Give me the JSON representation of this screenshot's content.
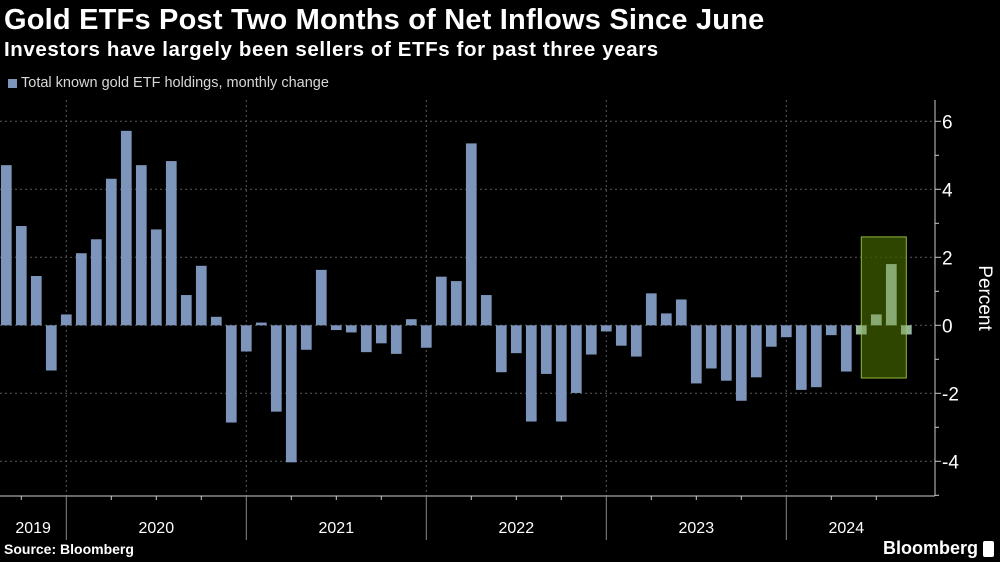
{
  "header": {
    "title": "Gold ETFs Post Two Months of Net Inflows Since June",
    "subtitle": "Investors have largely been sellers of ETFs for past three years"
  },
  "footer": {
    "source": "Source: Bloomberg",
    "logo": "Bloomberg"
  },
  "colors": {
    "background": "#000000",
    "bar": "#7d95bb",
    "highlight_fill": "#3d5c00",
    "highlight_border": "#93b840",
    "grid": "#5a5a5a"
  },
  "chart_data": {
    "type": "bar",
    "title": "Gold ETFs Post Two Months of Net Inflows Since June",
    "subtitle": "Investors have largely been sellers of ETFs for past three years",
    "legend": {
      "placement": "top-left",
      "entries": [
        "Total known gold ETF holdings, monthly change"
      ]
    },
    "ylabel": "Percent",
    "xlabel": "",
    "ylim": [
      -5,
      6.6
    ],
    "yticks": [
      6,
      4,
      2,
      0,
      -2,
      -4
    ],
    "ytick_labels": [
      "6",
      "4",
      "2",
      "0",
      "-2",
      "-4"
    ],
    "grid": true,
    "y_axis_side": "right",
    "year_labels": [
      "2019",
      "2020",
      "2021",
      "2022",
      "2023",
      "2024"
    ],
    "categories": [
      "2019-08",
      "2019-09",
      "2019-10",
      "2019-11",
      "2019-12",
      "2020-01",
      "2020-02",
      "2020-03",
      "2020-04",
      "2020-05",
      "2020-06",
      "2020-07",
      "2020-08",
      "2020-09",
      "2020-10",
      "2020-11",
      "2020-12",
      "2021-01",
      "2021-02",
      "2021-03",
      "2021-04",
      "2021-05",
      "2021-06",
      "2021-07",
      "2021-08",
      "2021-09",
      "2021-10",
      "2021-11",
      "2021-12",
      "2022-01",
      "2022-02",
      "2022-03",
      "2022-04",
      "2022-05",
      "2022-06",
      "2022-07",
      "2022-08",
      "2022-09",
      "2022-10",
      "2022-11",
      "2022-12",
      "2023-01",
      "2023-02",
      "2023-03",
      "2023-04",
      "2023-05",
      "2023-06",
      "2023-07",
      "2023-08",
      "2023-09",
      "2023-10",
      "2023-11",
      "2023-12",
      "2024-01",
      "2024-02",
      "2024-03",
      "2024-04",
      "2024-05",
      "2024-06",
      "2024-07",
      "2024-08"
    ],
    "series": [
      {
        "name": "Total known gold ETF holdings, monthly change",
        "values": [
          4.71,
          2.92,
          1.45,
          -1.33,
          0.32,
          2.12,
          2.53,
          4.31,
          5.72,
          4.71,
          2.82,
          4.83,
          0.89,
          1.75,
          0.25,
          -2.86,
          -0.77,
          0.08,
          -2.54,
          -4.03,
          -0.72,
          1.63,
          -0.14,
          -0.21,
          -0.79,
          -0.53,
          -0.84,
          0.18,
          -0.66,
          1.43,
          1.3,
          5.35,
          0.89,
          -1.38,
          -0.82,
          -2.83,
          -1.43,
          -2.83,
          -1.99,
          -0.86,
          -0.18,
          -0.6,
          -0.92,
          0.94,
          0.35,
          0.76,
          -1.71,
          -1.27,
          -1.63,
          -2.22,
          -1.53,
          -0.63,
          -0.35,
          -1.9,
          -1.82,
          -0.29,
          -1.36,
          -0.27,
          0.32,
          1.8,
          -0.27
        ]
      }
    ],
    "highlight": {
      "x_from": "2024-05",
      "x_to": "2024-08",
      "y_range": [
        -1.55,
        2.6
      ]
    }
  }
}
